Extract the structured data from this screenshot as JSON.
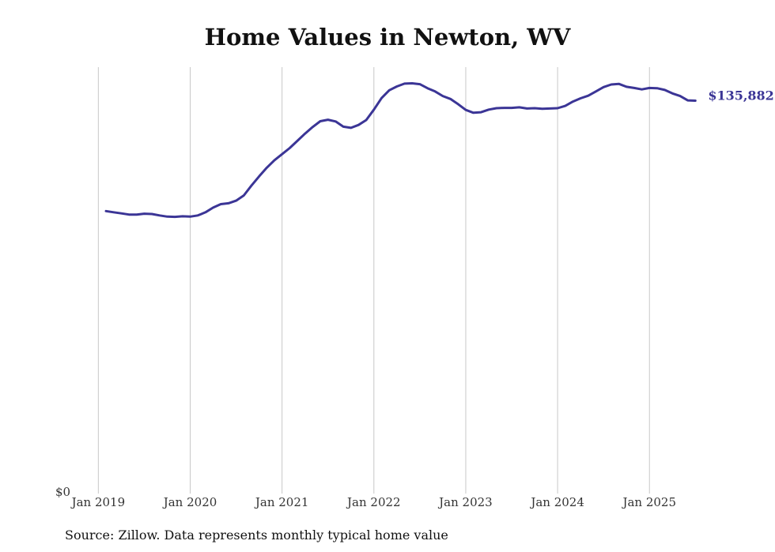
{
  "chart_data": {
    "type": "line",
    "title": "Home Values in Newton, WV",
    "source": "Source: Zillow. Data represents monthly typical home value",
    "xlabel": "",
    "ylabel": "",
    "y_min_label": "$0",
    "ylim": [
      0,
      147500
    ],
    "xlim": [
      "2018-11",
      "2025-08"
    ],
    "x_ticks": [
      "Jan 2019",
      "Jan 2020",
      "Jan 2021",
      "Jan 2022",
      "Jan 2023",
      "Jan 2024",
      "Jan 2025"
    ],
    "grid": "vertical",
    "legend": "none",
    "line_color": "#3b3596",
    "end_label": "$135,882",
    "series": [
      {
        "x": [
          "2019-02",
          "2019-03",
          "2019-04",
          "2019-05",
          "2019-06",
          "2019-07",
          "2019-08",
          "2019-09",
          "2019-10",
          "2019-11",
          "2019-12",
          "2020-01",
          "2020-02",
          "2020-03",
          "2020-04",
          "2020-05",
          "2020-06",
          "2020-07",
          "2020-08",
          "2020-09",
          "2020-10",
          "2020-11",
          "2020-12",
          "2021-01",
          "2021-02",
          "2021-03",
          "2021-04",
          "2021-05",
          "2021-06",
          "2021-07",
          "2021-08",
          "2021-09",
          "2021-10",
          "2021-11",
          "2021-12",
          "2022-01",
          "2022-02",
          "2022-03",
          "2022-04",
          "2022-05",
          "2022-06",
          "2022-07",
          "2022-08",
          "2022-09",
          "2022-10",
          "2022-11",
          "2022-12",
          "2023-01",
          "2023-02",
          "2023-03",
          "2023-04",
          "2023-05",
          "2023-06",
          "2023-07",
          "2023-08",
          "2023-09",
          "2023-10",
          "2023-11",
          "2023-12",
          "2024-01",
          "2024-02",
          "2024-03",
          "2024-04",
          "2024-05",
          "2024-06",
          "2024-07",
          "2024-08",
          "2024-09",
          "2024-10",
          "2024-11",
          "2024-12",
          "2025-01",
          "2025-02",
          "2025-03",
          "2025-04",
          "2025-05",
          "2025-06",
          "2025-07"
        ],
        "values": [
          97700,
          97300,
          96900,
          96500,
          96500,
          96800,
          96700,
          96200,
          95800,
          95700,
          95900,
          95800,
          96200,
          97300,
          98900,
          100100,
          100400,
          101300,
          103100,
          106500,
          109700,
          112700,
          115300,
          117400,
          119500,
          122000,
          124500,
          126800,
          128800,
          129300,
          128700,
          126900,
          126500,
          127500,
          129200,
          132800,
          136800,
          139500,
          140800,
          141800,
          141900,
          141600,
          140200,
          139100,
          137500,
          136500,
          134700,
          132700,
          131700,
          131900,
          132800,
          133300,
          133400,
          133400,
          133600,
          133200,
          133300,
          133100,
          133200,
          133300,
          134100,
          135600,
          136700,
          137600,
          139100,
          140600,
          141500,
          141700,
          140700,
          140300,
          139800,
          140300,
          140200,
          139600,
          138400,
          137500,
          136000,
          135882
        ]
      }
    ]
  }
}
